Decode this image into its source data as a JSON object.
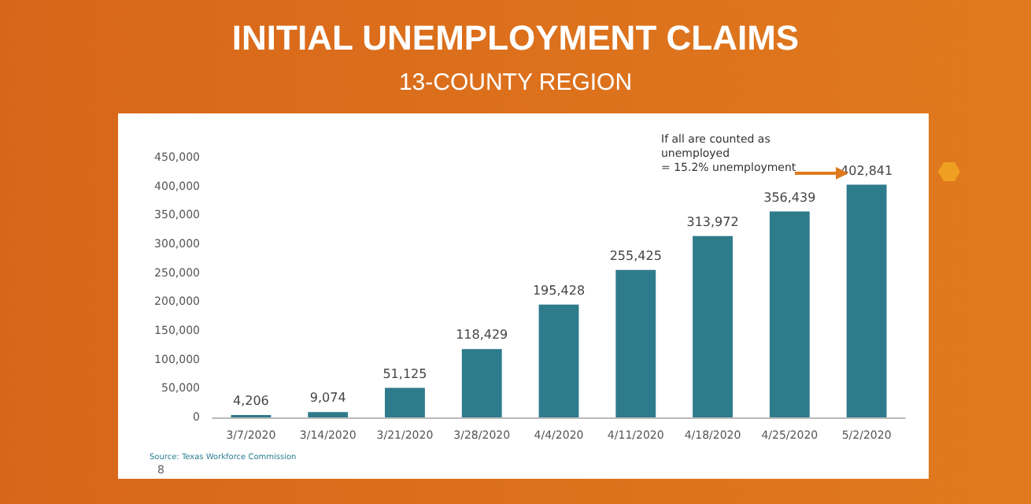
{
  "chart_data": {
    "type": "bar",
    "title": "INITIAL UNEMPLOYMENT CLAIMS",
    "subtitle": "13-COUNTY REGION",
    "categories": [
      "3/7/2020",
      "3/14/2020",
      "3/21/2020",
      "3/28/2020",
      "4/4/2020",
      "4/11/2020",
      "4/18/2020",
      "4/25/2020",
      "5/2/2020"
    ],
    "values": [
      4206,
      9074,
      51125,
      118429,
      195428,
      255425,
      313972,
      356439,
      402841
    ],
    "value_labels": [
      "4,206",
      "9,074",
      "51,125",
      "118,429",
      "195,428",
      "255,425",
      "313,972",
      "356,439",
      "402,841"
    ],
    "color": "#2e7b8c",
    "ylim": [
      0,
      450000
    ],
    "yticks": [
      0,
      {
        "value": 50000,
        "label": "50,000"
      },
      {
        "value": 100000,
        "label": "100,000"
      },
      {
        "value": 150000,
        "label": "150,000"
      },
      {
        "value": 200000,
        "label": "200,000"
      },
      {
        "value": 250000,
        "label": "250,000"
      },
      {
        "value": 300000,
        "label": "300,000"
      },
      {
        "value": 350000,
        "label": "350,000"
      },
      {
        "value": 400000,
        "label": "400,000"
      },
      {
        "value": 450000,
        "label": "450,000"
      }
    ],
    "grid": false,
    "annotations": [
      "If all are counted as unemployed = 15.2% unemployment",
      "Source: Texas Workforce Commission",
      "8"
    ]
  }
}
